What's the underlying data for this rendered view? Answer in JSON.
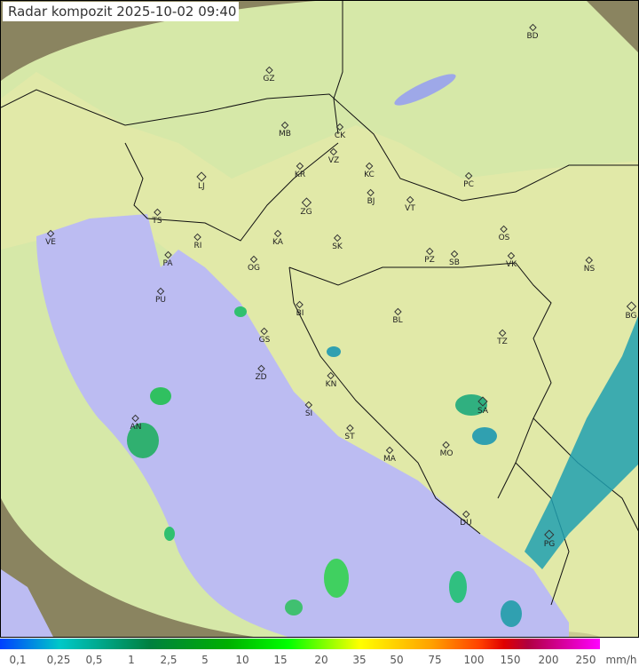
{
  "title": "Radar kompozit  2025-10-02   09:40",
  "colors": {
    "sea": "#bcbcf2",
    "land": "#e8eaa8",
    "coverage": "#c8ecb0",
    "outside": "#8a8460",
    "radar_green": "#30c060",
    "radar_teal": "#20a0b0"
  },
  "cities": [
    "BD",
    "GZ",
    "MB",
    "CK",
    "VZ",
    "KR",
    "KC",
    "LJ",
    "PC",
    "BJ",
    "VT",
    "ZG",
    "TS",
    "VE",
    "KA",
    "SK",
    "RI",
    "OS",
    "PZ",
    "SB",
    "VK",
    "NS",
    "PA",
    "OG",
    "PU",
    "BI",
    "BL",
    "BG",
    "GS",
    "TZ",
    "ZD",
    "KN",
    "SA",
    "SI",
    "AN",
    "ST",
    "MO",
    "MA",
    "DU",
    "PG"
  ],
  "legend": {
    "unit": "mm/h",
    "ticks": [
      "0,1",
      "0,25",
      "0,5",
      "1",
      "2,5",
      "5",
      "10",
      "15",
      "20",
      "35",
      "50",
      "75",
      "100",
      "150",
      "200",
      "250"
    ]
  }
}
